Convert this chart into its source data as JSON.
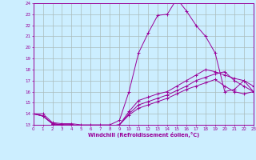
{
  "title": "",
  "xlabel": "Windchill (Refroidissement éolien,°C)",
  "background_color": "#cceeff",
  "grid_color": "#aabbbb",
  "line_color": "#990099",
  "x_min": 0,
  "x_max": 23,
  "y_min": 13,
  "y_max": 24,
  "lines": [
    {
      "x": [
        0,
        1,
        2,
        3,
        4,
        5,
        6,
        7,
        8,
        9,
        10,
        11,
        12,
        13,
        14,
        15,
        16,
        17,
        18,
        19,
        20,
        21,
        22,
        23
      ],
      "y": [
        14.0,
        14.0,
        13.2,
        13.1,
        13.1,
        13.0,
        13.0,
        13.0,
        13.0,
        13.4,
        16.0,
        19.5,
        21.3,
        22.9,
        23.0,
        24.4,
        23.3,
        22.0,
        21.0,
        19.5,
        16.0,
        16.2,
        17.0,
        16.0
      ]
    },
    {
      "x": [
        0,
        1,
        2,
        3,
        4,
        5,
        6,
        7,
        8,
        9,
        10,
        11,
        12,
        13,
        14,
        15,
        16,
        17,
        18,
        19,
        20,
        21,
        22,
        23
      ],
      "y": [
        14.0,
        13.8,
        13.1,
        13.0,
        13.0,
        12.9,
        12.9,
        12.9,
        12.9,
        13.0,
        14.2,
        15.2,
        15.5,
        15.8,
        16.0,
        16.5,
        17.0,
        17.5,
        18.0,
        17.8,
        17.5,
        17.2,
        17.0,
        16.5
      ]
    },
    {
      "x": [
        0,
        1,
        2,
        3,
        4,
        5,
        6,
        7,
        8,
        9,
        10,
        11,
        12,
        13,
        14,
        15,
        16,
        17,
        18,
        19,
        20,
        21,
        22,
        23
      ],
      "y": [
        14.0,
        13.8,
        13.1,
        13.0,
        13.0,
        12.9,
        12.9,
        12.9,
        12.9,
        13.0,
        14.0,
        14.8,
        15.1,
        15.4,
        15.7,
        16.1,
        16.5,
        17.0,
        17.3,
        17.6,
        17.8,
        17.0,
        16.5,
        16.0
      ]
    },
    {
      "x": [
        0,
        1,
        2,
        3,
        4,
        5,
        6,
        7,
        8,
        9,
        10,
        11,
        12,
        13,
        14,
        15,
        16,
        17,
        18,
        19,
        20,
        21,
        22,
        23
      ],
      "y": [
        14.0,
        13.8,
        13.1,
        13.0,
        13.0,
        12.9,
        12.9,
        12.9,
        12.9,
        13.0,
        13.9,
        14.5,
        14.8,
        15.1,
        15.4,
        15.8,
        16.2,
        16.5,
        16.8,
        17.1,
        16.5,
        16.0,
        15.8,
        16.0
      ]
    }
  ]
}
